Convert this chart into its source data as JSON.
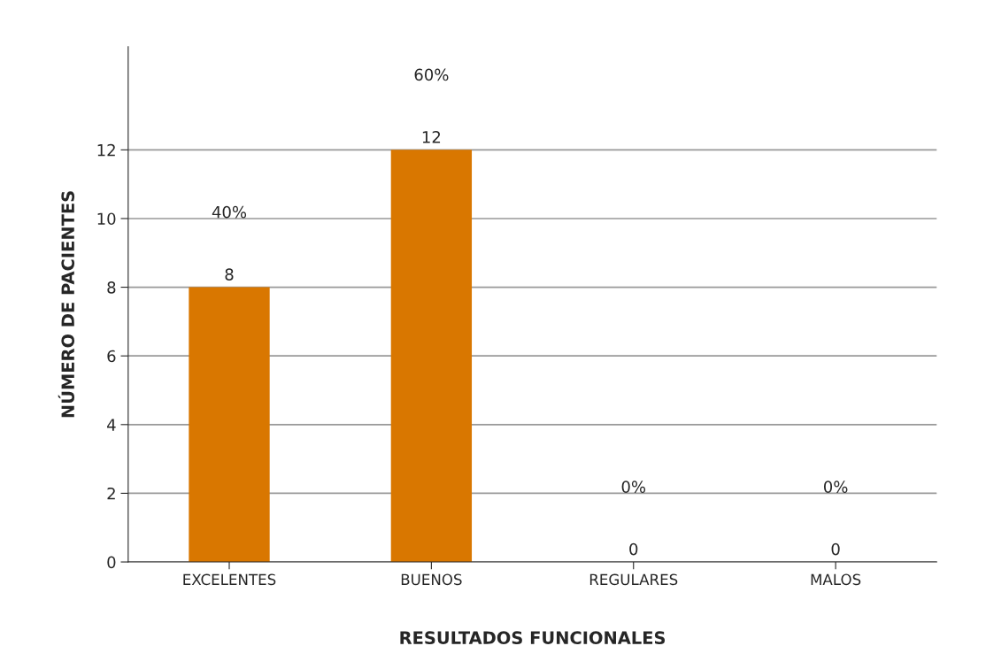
{
  "chart_data": {
    "type": "bar",
    "xlabel": "RESULTADOS FUNCIONALES",
    "ylabel": "NÚMERO DE PACIENTES",
    "categories": [
      "EXCELENTES",
      "BUENOS",
      "REGULARES",
      "MALOS"
    ],
    "values": [
      8,
      12,
      0,
      0
    ],
    "color": "#d97700",
    "ylim": [
      0,
      15
    ],
    "yticks": [
      0,
      2,
      4,
      6,
      8,
      10,
      12
    ],
    "grid": "y",
    "data_labels": true,
    "annotations": [
      "40%",
      "60%",
      "0%",
      "0%"
    ]
  }
}
